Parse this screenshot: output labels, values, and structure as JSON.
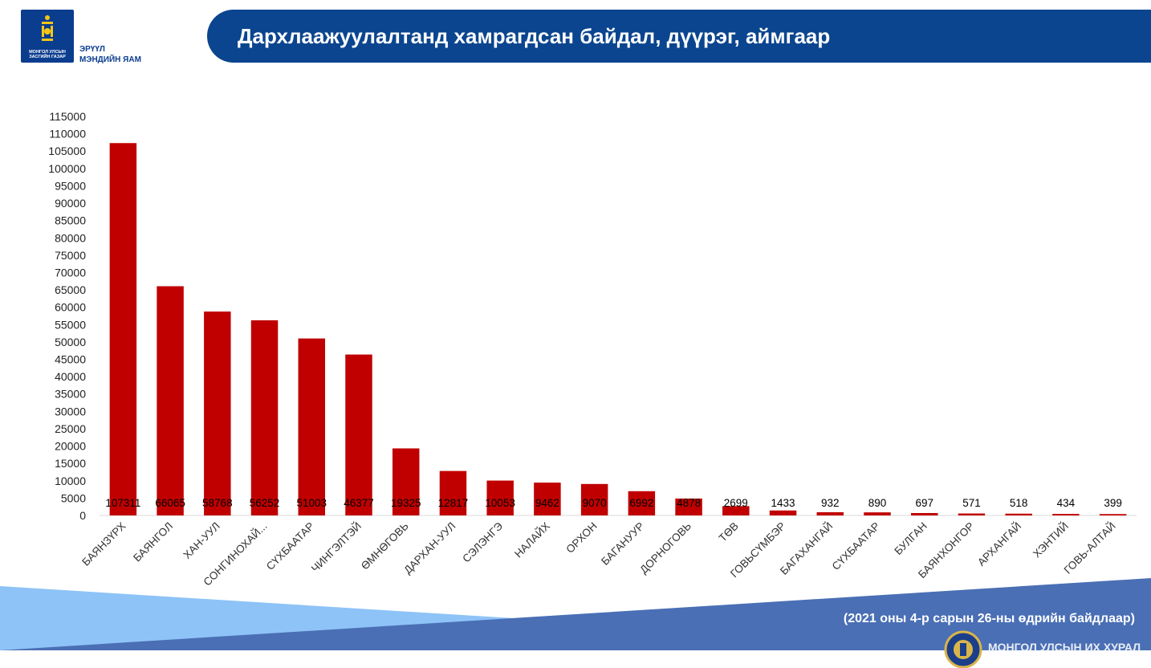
{
  "header": {
    "logo_caption_line1": "МОНГОЛ УЛСЫН",
    "logo_caption_line2": "ЗАСГИЙН ГАЗАР",
    "ministry_line1": "ЭРҮҮЛ",
    "ministry_line2": "МЭНДИЙН ЯАМ",
    "title": "Дархлаажуулалтанд хамрагдсан байдал, дүүрэг, аймгаар"
  },
  "footer": {
    "note": "(2021 оны 4-р сарын 26-ны өдрийн байдлаар)",
    "parliament_name": "МОНГОЛ УЛСЫН ИХ ХУРАЛ"
  },
  "colors": {
    "bar": "#c00000",
    "banner": "#0b458f",
    "band_light": "#8ec3f7",
    "band_dark": "#4a6fb5"
  },
  "chart_data": {
    "type": "bar",
    "categories": [
      "БАЯНЗҮРХ",
      "БАЯНГОЛ",
      "ХАН-УУЛ",
      "СОНГИНОХАЙ...",
      "СҮХБААТАР",
      "ЧИНГЭЛТЭЙ",
      "ӨМНӨГОВЬ",
      "ДАРХАН-УУЛ",
      "СЭЛЭНГЭ",
      "НАЛАЙХ",
      "ОРХОН",
      "БАГАНУУР",
      "ДОРНОГОВЬ",
      "ТӨВ",
      "ГОВЬСҮМБЭР",
      "БАГАХАНГАЙ",
      "СҮХБААТАР",
      "БУЛГАН",
      "БАЯНХОНГОР",
      "АРХАНГАЙ",
      "ХЭНТИЙ",
      "ГОВЬ-АЛТАЙ"
    ],
    "values": [
      107311,
      66065,
      58768,
      56252,
      51003,
      46377,
      19325,
      12817,
      10053,
      9462,
      9070,
      6992,
      4878,
      2699,
      1433,
      932,
      890,
      697,
      571,
      518,
      434,
      399
    ],
    "ylim": [
      0,
      115000
    ],
    "ytick_step": 5000,
    "grid": false,
    "legend": "none"
  }
}
